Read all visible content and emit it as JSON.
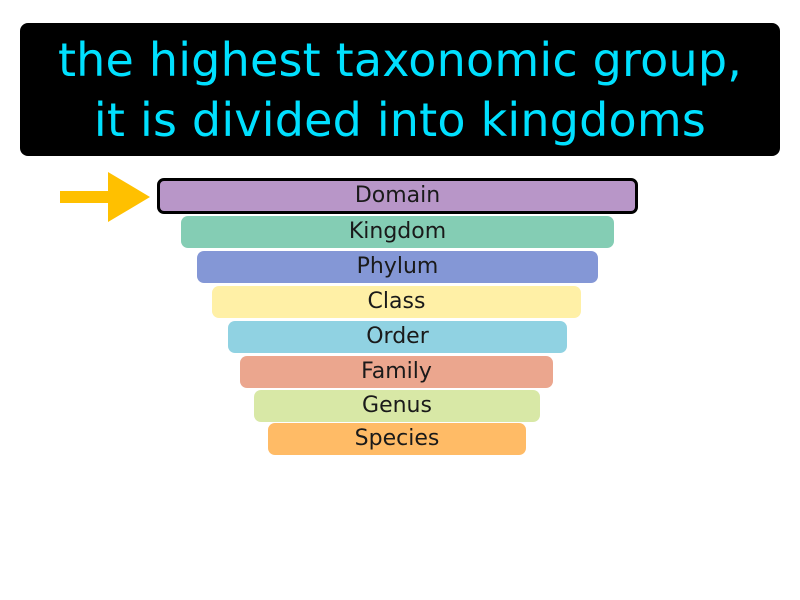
{
  "definition": {
    "lines": [
      "the highest taxonomic group,",
      "it is divided into kingdoms"
    ],
    "text_color": "#00e0ff",
    "background_color": "#000000"
  },
  "pointer": {
    "icon": "arrow-right-icon",
    "color": "#ffc000"
  },
  "levels": [
    {
      "label": "Domain",
      "color": "#b896c8",
      "current": true
    },
    {
      "label": "Kingdom",
      "color": "#84cdb4",
      "current": false
    },
    {
      "label": "Phylum",
      "color": "#8497d6",
      "current": false
    },
    {
      "label": "Class",
      "color": "#fff0a6",
      "current": false
    },
    {
      "label": "Order",
      "color": "#90d2e2",
      "current": false
    },
    {
      "label": "Family",
      "color": "#eba68e",
      "current": false
    },
    {
      "label": "Genus",
      "color": "#d8e8a6",
      "current": false
    },
    {
      "label": "Species",
      "color": "#ffbb66",
      "current": false
    }
  ]
}
